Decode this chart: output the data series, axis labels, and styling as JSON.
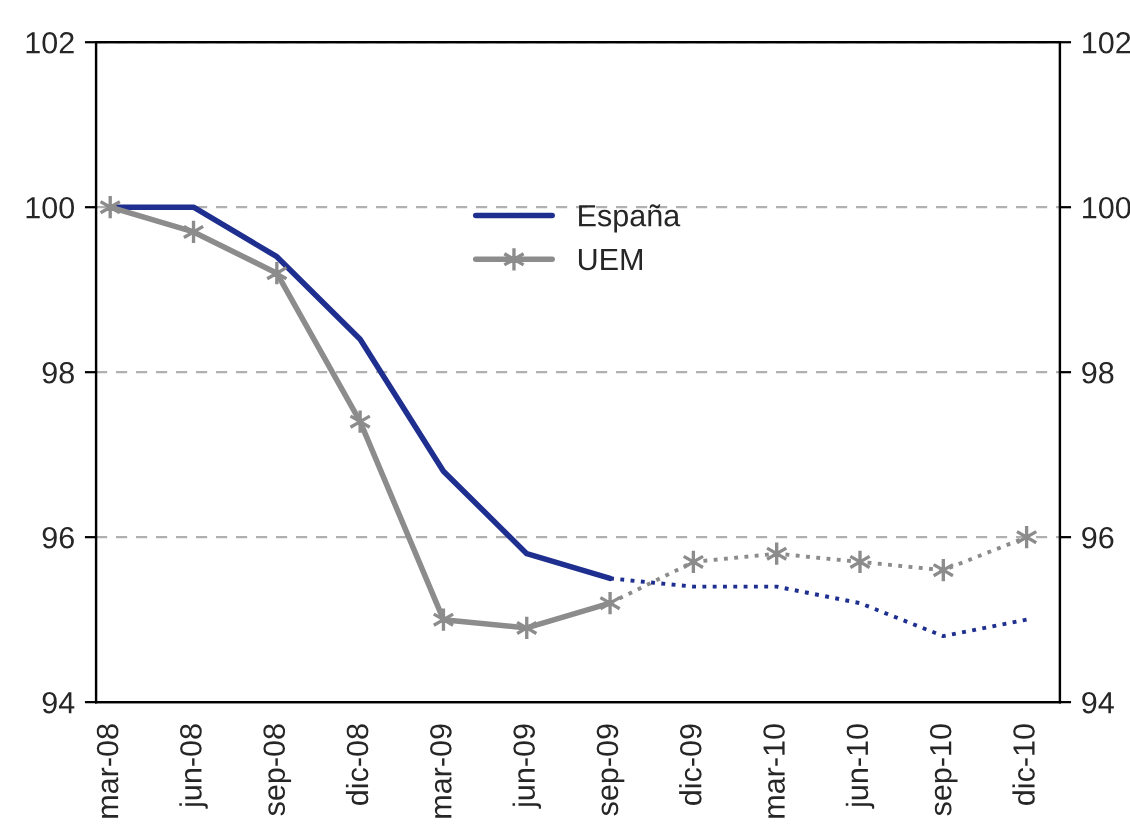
{
  "chart_data": {
    "type": "line",
    "categories": [
      "mar-08",
      "jun-08",
      "sep-08",
      "dic-08",
      "mar-09",
      "jun-09",
      "sep-09",
      "dic-09",
      "mar-10",
      "jun-10",
      "sep-10",
      "dic-10"
    ],
    "series": [
      {
        "name": "España",
        "color": "#1f2f8f",
        "marker": "none",
        "line_style": "solid",
        "values": [
          100,
          100,
          99.4,
          98.4,
          96.8,
          95.8,
          95.5,
          null,
          null,
          null,
          null,
          null
        ]
      },
      {
        "color": "#1f2f8f",
        "marker": "none",
        "line_style": "dotted",
        "values": [
          null,
          null,
          null,
          null,
          null,
          null,
          95.5,
          95.4,
          95.4,
          95.2,
          94.8,
          95.0
        ]
      },
      {
        "name": "UEM",
        "color": "#8c8c8c",
        "marker": "cross",
        "line_style": "solid",
        "values": [
          100,
          99.7,
          99.2,
          97.4,
          95.0,
          94.9,
          95.2,
          null,
          null,
          null,
          null,
          null
        ]
      },
      {
        "color": "#8c8c8c",
        "marker": "cross",
        "line_style": "dotted",
        "values": [
          null,
          null,
          null,
          null,
          null,
          null,
          95.2,
          95.7,
          95.8,
          95.7,
          95.6,
          96.0
        ]
      }
    ],
    "ylim": [
      94,
      102
    ],
    "yticks": [
      94,
      96,
      98,
      100,
      102
    ],
    "y2lim": [
      94,
      102
    ],
    "y2ticks": [
      94,
      96,
      98,
      100,
      102
    ],
    "grid": "y",
    "legend": "center"
  }
}
